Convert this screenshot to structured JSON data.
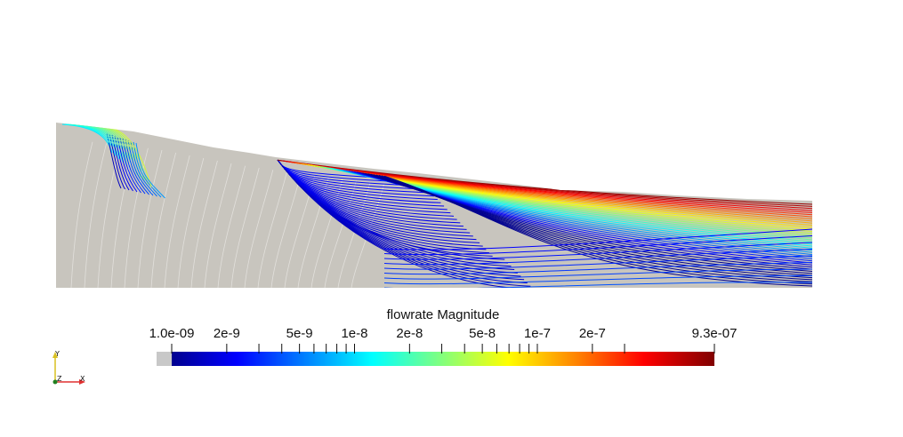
{
  "colorbar": {
    "title": "flowrate Magnitude",
    "scale": "log",
    "range": [
      1e-09,
      9.3e-07
    ],
    "nan_color": "#c8c8c8",
    "labels": [
      {
        "text": "1.0e-09",
        "value": 1e-09
      },
      {
        "text": "2e-9",
        "value": 2e-09
      },
      {
        "text": "5e-9",
        "value": 5e-09
      },
      {
        "text": "1e-8",
        "value": 1e-08
      },
      {
        "text": "2e-8",
        "value": 2e-08
      },
      {
        "text": "5e-8",
        "value": 5e-08
      },
      {
        "text": "1e-7",
        "value": 1e-07
      },
      {
        "text": "2e-7",
        "value": 2e-07
      },
      {
        "text": "9.3e-07",
        "value": 9.3e-07
      }
    ],
    "minor_ticks": [
      2e-09,
      3e-09,
      4e-09,
      5e-09,
      6e-09,
      7e-09,
      8e-09,
      9e-09,
      1e-08,
      2e-08,
      3e-08,
      4e-08,
      5e-08,
      6e-08,
      7e-08,
      8e-08,
      9e-08,
      1e-07,
      2e-07,
      3e-07
    ],
    "colormap": [
      "#00008f",
      "#0000ff",
      "#00ffff",
      "#ffff00",
      "#ff7f00",
      "#ff0000",
      "#800000"
    ]
  },
  "orientation_axes": {
    "x_label": "X",
    "y_label": "Y",
    "z_label": "Z",
    "x_color": "#e03030",
    "y_color": "#d8c020",
    "z_color": "#208020"
  },
  "domain": {
    "fill": "#c8c5be"
  }
}
